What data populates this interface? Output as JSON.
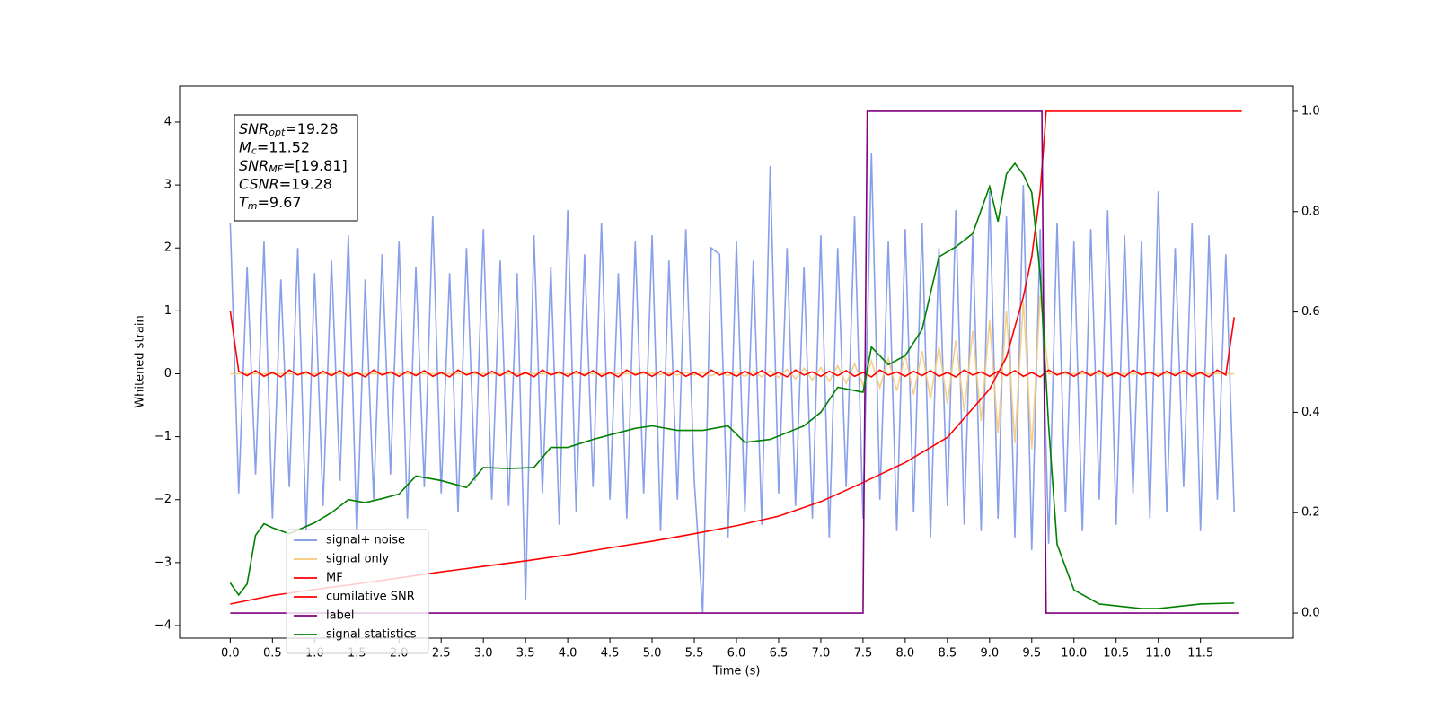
{
  "chart_data": {
    "type": "line",
    "xlabel": "Time (s)",
    "ylabel": "Whitened strain",
    "annotations": [
      {
        "main": "SNR",
        "sub": "opt",
        "rest": "=19.28"
      },
      {
        "main": "M",
        "sub": "c",
        "rest": "=11.52"
      },
      {
        "main": "SNR",
        "sub": "MF",
        "rest": "=[19.81]"
      },
      {
        "main": "CSNR",
        "sub": "",
        "rest": "=19.28"
      },
      {
        "main": "T",
        "sub": "m",
        "rest": "=9.67"
      }
    ],
    "xlim": [
      -0.6,
      12.6
    ],
    "ylim": [
      -4.2,
      4.57
    ],
    "y2lim": [
      -0.05,
      1.05
    ],
    "xticks": [
      {
        "value": 0,
        "label": "0.0"
      },
      {
        "value": 0.5,
        "label": "0.5"
      },
      {
        "value": 1,
        "label": "1.0"
      },
      {
        "value": 1.5,
        "label": "1.5"
      },
      {
        "value": 2,
        "label": "2.0"
      },
      {
        "value": 2.5,
        "label": "2.5"
      },
      {
        "value": 3,
        "label": "3.0"
      },
      {
        "value": 3.5,
        "label": "3.5"
      },
      {
        "value": 4,
        "label": "4.0"
      },
      {
        "value": 4.5,
        "label": "4.5"
      },
      {
        "value": 5,
        "label": "5.0"
      },
      {
        "value": 5.5,
        "label": "5.5"
      },
      {
        "value": 6,
        "label": "6.0"
      },
      {
        "value": 6.5,
        "label": "6.5"
      },
      {
        "value": 7,
        "label": "7.0"
      },
      {
        "value": 7.5,
        "label": "7.5"
      },
      {
        "value": 8,
        "label": "8.0"
      },
      {
        "value": 8.5,
        "label": "8.5"
      },
      {
        "value": 9,
        "label": "9.0"
      },
      {
        "value": 9.5,
        "label": "9.5"
      },
      {
        "value": 10,
        "label": "10.0"
      },
      {
        "value": 10.5,
        "label": "10.5"
      },
      {
        "value": 11,
        "label": "11.0"
      },
      {
        "value": 11.5,
        "label": "11.5"
      }
    ],
    "yticks": [
      {
        "value": -4,
        "label": "−4"
      },
      {
        "value": -3,
        "label": "−3"
      },
      {
        "value": -2,
        "label": "−2"
      },
      {
        "value": -1,
        "label": "−1"
      },
      0,
      1,
      2,
      3,
      4
    ],
    "y2ticks": [
      {
        "value": 0,
        "label": "0.0"
      },
      {
        "value": 0.2,
        "label": "0.2"
      },
      {
        "value": 0.4,
        "label": "0.4"
      },
      {
        "value": 0.6,
        "label": "0.6"
      },
      {
        "value": 0.8,
        "label": "0.8"
      },
      {
        "value": 1,
        "label": "1.0"
      }
    ],
    "legend": "lower left",
    "grid": false,
    "x": [
      0,
      0.1,
      0.2,
      0.3,
      0.4,
      0.5,
      0.6,
      0.7,
      0.8,
      0.9,
      1,
      1.1,
      1.2,
      1.3,
      1.4,
      1.5,
      1.6,
      1.7,
      1.8,
      1.9,
      2,
      2.1,
      2.2,
      2.3,
      2.4,
      2.5,
      2.6,
      2.7,
      2.8,
      2.9,
      3,
      3.1,
      3.2,
      3.3,
      3.4,
      3.5,
      3.6,
      3.7,
      3.8,
      3.9,
      4,
      4.1,
      4.2,
      4.3,
      4.4,
      4.5,
      4.6,
      4.7,
      4.8,
      4.9,
      5,
      5.1,
      5.2,
      5.3,
      5.4,
      5.5,
      5.6,
      5.7,
      5.8,
      5.9,
      6,
      6.1,
      6.2,
      6.3,
      6.4,
      6.5,
      6.6,
      6.7,
      6.8,
      6.9,
      7,
      7.1,
      7.2,
      7.3,
      7.4,
      7.5,
      7.6,
      7.7,
      7.8,
      7.9,
      8,
      8.1,
      8.2,
      8.3,
      8.4,
      8.5,
      8.6,
      8.7,
      8.8,
      8.9,
      9,
      9.1,
      9.2,
      9.3,
      9.4,
      9.5,
      9.6,
      9.7,
      9.8,
      9.9,
      10,
      10.1,
      10.2,
      10.3,
      10.4,
      10.5,
      10.6,
      10.7,
      10.8,
      10.9,
      11,
      11.1,
      11.2,
      11.3,
      11.4,
      11.5,
      11.6,
      11.7,
      11.8,
      11.9
    ],
    "series": [
      {
        "name": "signal+ noise",
        "color": "#7b95e8",
        "values": [
          2.4,
          -1.9,
          1.7,
          -1.6,
          2.1,
          -2.3,
          1.5,
          -1.8,
          2.0,
          -2.5,
          1.6,
          -2.1,
          1.8,
          -1.7,
          2.2,
          -2.6,
          1.5,
          -2.0,
          1.9,
          -1.6,
          2.1,
          -2.3,
          1.7,
          -1.8,
          2.5,
          -1.9,
          1.6,
          -2.2,
          2.0,
          -1.7,
          2.3,
          -2.0,
          1.8,
          -2.1,
          1.6,
          -3.6,
          2.2,
          -1.9,
          1.7,
          -2.4,
          2.6,
          -2.2,
          1.9,
          -1.8,
          2.4,
          -2.0,
          1.6,
          -2.3,
          2.1,
          -1.9,
          2.2,
          -2.5,
          1.8,
          -2.0,
          2.3,
          -1.7,
          -3.8,
          2.0,
          1.9,
          -2.6,
          2.1,
          -2.2,
          1.8,
          -2.4,
          3.3,
          -1.9,
          2.0,
          -2.1,
          1.7,
          -2.3,
          2.2,
          -2.6,
          2.0,
          -1.8,
          2.5,
          -2.3,
          3.5,
          -2.0,
          2.1,
          -2.5,
          2.3,
          -2.2,
          2.4,
          -2.6,
          2.0,
          -2.1,
          2.6,
          -2.4,
          2.2,
          -2.5,
          2.9,
          -2.3,
          2.5,
          -2.6,
          3.0,
          -2.8,
          2.3,
          -2.7,
          2.4,
          -2.2,
          2.1,
          -2.5,
          2.3,
          -2.0,
          2.6,
          -2.4,
          2.2,
          -1.9,
          2.1,
          -2.3,
          2.9,
          -2.2,
          2.0,
          -1.8,
          2.4,
          -2.5,
          2.2,
          -2.0,
          1.9,
          -2.2
        ]
      },
      {
        "name": "signal only",
        "color": "#f5c97a",
        "values": [
          0,
          0,
          0,
          0,
          0,
          0,
          0,
          0,
          0,
          0,
          0,
          0,
          0,
          0,
          0,
          0,
          0,
          0,
          0,
          0,
          0,
          0,
          0,
          0,
          0,
          0,
          0,
          0,
          0,
          0,
          0,
          0,
          0,
          0,
          0,
          0,
          0,
          0,
          0,
          0,
          0,
          0,
          0,
          0,
          0,
          0,
          0,
          0,
          0,
          0,
          0.01,
          -0.01,
          0.01,
          -0.02,
          0.02,
          -0.02,
          0.02,
          -0.03,
          0.03,
          -0.03,
          0.03,
          -0.04,
          0.04,
          -0.05,
          0.05,
          -0.06,
          0.07,
          -0.08,
          0.09,
          -0.1,
          0.1,
          -0.12,
          0.13,
          -0.15,
          0.16,
          -0.18,
          0.2,
          -0.22,
          0.24,
          -0.27,
          0.3,
          -0.33,
          0.36,
          -0.4,
          0.44,
          -0.48,
          0.53,
          -0.6,
          0.68,
          -0.75,
          0.85,
          -0.95,
          1.0,
          -1.1,
          1.15,
          -1.2,
          1.25,
          0,
          0,
          0,
          0,
          0,
          0,
          0,
          0,
          0,
          0,
          0,
          0,
          0,
          0,
          0,
          0,
          0,
          0,
          0,
          0,
          0,
          0,
          0
        ]
      },
      {
        "name": "MF",
        "color": "#ff0000",
        "values": [
          1.0,
          0.04,
          -0.03,
          0.05,
          -0.04,
          0.02,
          -0.05,
          0.06,
          -0.02,
          0.03,
          -0.04,
          0.04,
          -0.03,
          0.05,
          -0.04,
          0.02,
          -0.05,
          0.06,
          -0.02,
          0.03,
          -0.04,
          0.04,
          -0.03,
          0.05,
          -0.04,
          0.02,
          -0.05,
          0.06,
          -0.02,
          0.03,
          -0.04,
          0.04,
          -0.03,
          0.05,
          -0.04,
          0.02,
          -0.05,
          0.06,
          -0.02,
          0.03,
          -0.04,
          0.04,
          -0.03,
          0.05,
          -0.04,
          0.02,
          -0.05,
          0.06,
          -0.02,
          0.03,
          -0.04,
          0.04,
          -0.03,
          0.05,
          -0.04,
          0.02,
          -0.05,
          0.06,
          -0.02,
          0.03,
          -0.04,
          0.04,
          -0.03,
          0.05,
          -0.04,
          0.02,
          -0.05,
          0.06,
          -0.02,
          0.03,
          -0.04,
          0.04,
          -0.03,
          0.05,
          -0.04,
          0.02,
          -0.05,
          0.06,
          -0.02,
          0.03,
          -0.04,
          0.04,
          -0.03,
          0.05,
          -0.04,
          0.02,
          -0.05,
          0.06,
          -0.02,
          0.03,
          -0.04,
          0.04,
          -0.03,
          0.05,
          -0.04,
          0.02,
          -0.05,
          0.06,
          -0.02,
          0.03,
          -0.04,
          0.04,
          -0.03,
          0.05,
          -0.04,
          0.02,
          -0.05,
          0.06,
          -0.02,
          0.03,
          -0.04,
          0.04,
          -0.03,
          0.05,
          -0.04,
          0.02,
          -0.05,
          0.06,
          -0.02,
          0.9
        ]
      },
      {
        "name": "cumilative SNR",
        "color": "#ff0000",
        "axis": "y2",
        "x": [
          0,
          0.5,
          1,
          1.5,
          2,
          2.5,
          3,
          3.5,
          4,
          4.5,
          5,
          5.5,
          6,
          6.5,
          7,
          7.5,
          8,
          8.5,
          9,
          9.2,
          9.4,
          9.5,
          9.6,
          9.65,
          9.67,
          11.99
        ],
        "values": [
          0.018,
          0.035,
          0.047,
          0.058,
          0.07,
          0.082,
          0.093,
          0.104,
          0.116,
          0.13,
          0.143,
          0.158,
          0.174,
          0.193,
          0.222,
          0.26,
          0.3,
          0.35,
          0.446,
          0.51,
          0.63,
          0.71,
          0.84,
          0.95,
          1.0,
          1.0
        ]
      },
      {
        "name": "label",
        "color": "#800080",
        "axis": "y2",
        "x": [
          0,
          7.5,
          7.55,
          9.62,
          9.67,
          11.95
        ],
        "values": [
          0,
          0,
          1,
          1,
          0,
          0
        ]
      },
      {
        "name": "signal statistics",
        "color": "#008000",
        "axis": "y2",
        "x": [
          0,
          0.1,
          0.2,
          0.3,
          0.4,
          0.5,
          0.7,
          1.0,
          1.2,
          1.4,
          1.6,
          1.8,
          2.0,
          2.2,
          2.5,
          2.8,
          3.0,
          3.3,
          3.6,
          3.8,
          4.0,
          4.3,
          4.5,
          4.8,
          5.0,
          5.3,
          5.6,
          5.9,
          6.1,
          6.4,
          6.8,
          7.0,
          7.2,
          7.5,
          7.6,
          7.8,
          8.0,
          8.2,
          8.4,
          8.6,
          8.8,
          9.0,
          9.1,
          9.2,
          9.3,
          9.4,
          9.5,
          9.6,
          9.7,
          9.8,
          10.0,
          10.3,
          10.8,
          11.0,
          11.5,
          11.9
        ],
        "values": [
          0.06,
          0.036,
          0.058,
          0.155,
          0.178,
          0.17,
          0.158,
          0.18,
          0.2,
          0.226,
          0.22,
          0.228,
          0.237,
          0.273,
          0.264,
          0.25,
          0.29,
          0.288,
          0.29,
          0.33,
          0.33,
          0.346,
          0.355,
          0.368,
          0.373,
          0.364,
          0.364,
          0.373,
          0.34,
          0.346,
          0.373,
          0.4,
          0.45,
          0.44,
          0.53,
          0.495,
          0.513,
          0.565,
          0.71,
          0.73,
          0.756,
          0.85,
          0.78,
          0.875,
          0.896,
          0.874,
          0.838,
          0.674,
          0.373,
          0.137,
          0.046,
          0.018,
          0.009,
          0.009,
          0.018,
          0.02
        ]
      }
    ]
  }
}
